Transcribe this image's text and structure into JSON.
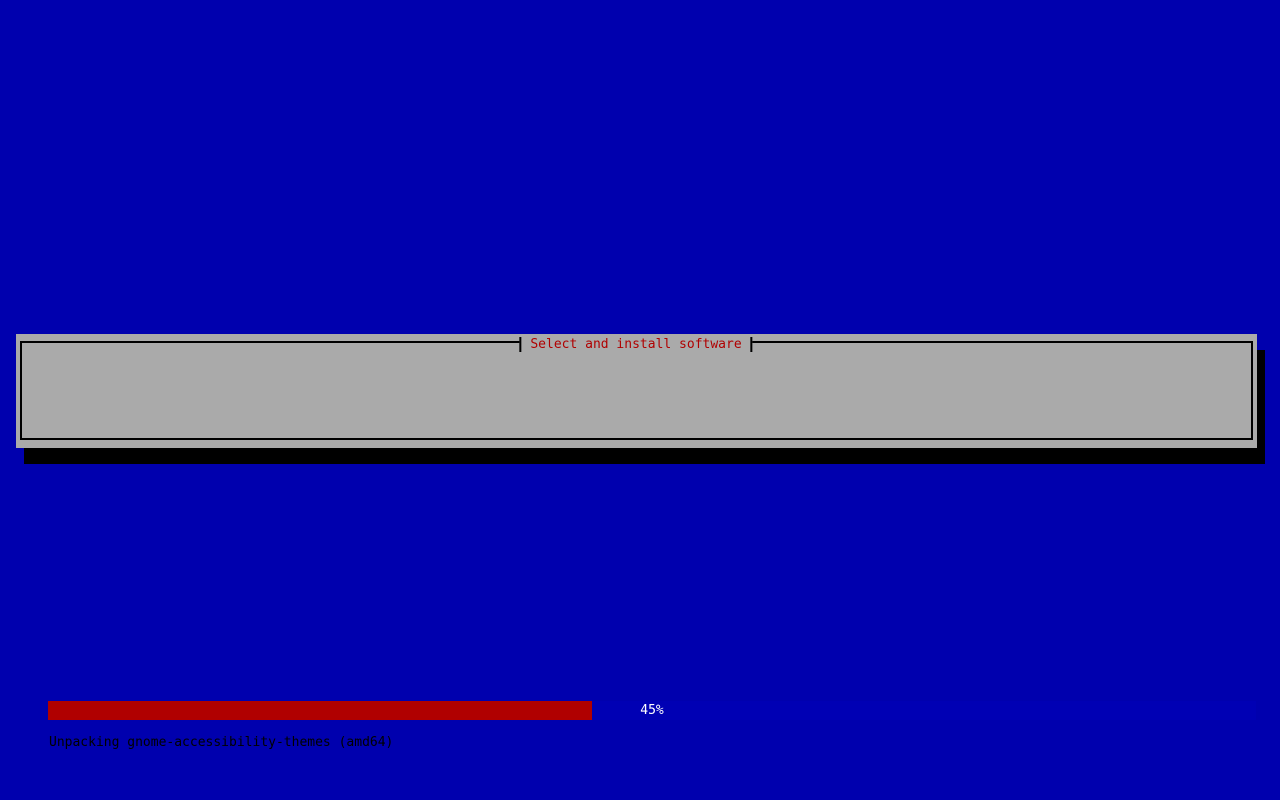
{
  "screen": {
    "background_color": "#0000ae"
  },
  "dialog": {
    "title": "Select and install software",
    "title_color": "#b00000",
    "background_color": "#aaaaaa",
    "border_color": "#000000",
    "shadow_color": "#000000",
    "progress": {
      "percent": 45,
      "label": "45%",
      "fill_color": "#b00000",
      "track_color": "#0000b4",
      "label_color": "#ffffff"
    },
    "status_text": "Unpacking gnome-accessibility-themes (amd64)",
    "status_color": "#000000"
  }
}
